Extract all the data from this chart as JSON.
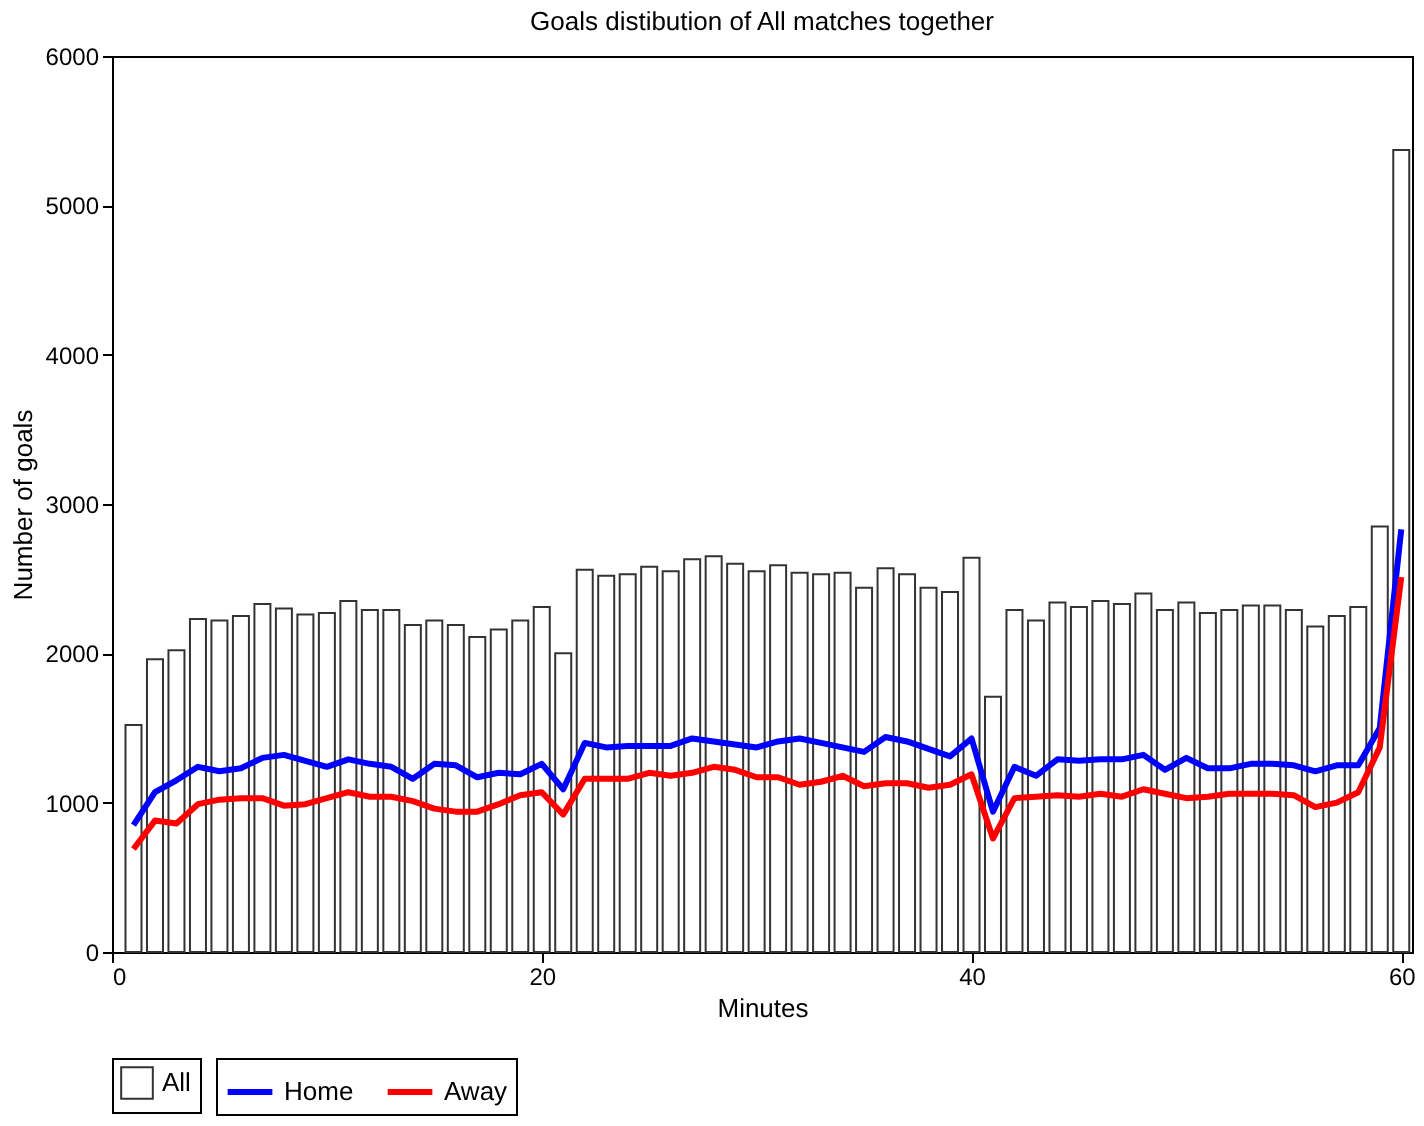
{
  "chart_data": {
    "type": "bar",
    "title": "Goals distibution of All matches together",
    "xlabel": "Minutes",
    "ylabel": "Number of goals",
    "x": [
      1,
      2,
      3,
      4,
      5,
      6,
      7,
      8,
      9,
      10,
      11,
      12,
      13,
      14,
      15,
      16,
      17,
      18,
      19,
      20,
      21,
      22,
      23,
      24,
      25,
      26,
      27,
      28,
      29,
      30,
      31,
      32,
      33,
      34,
      35,
      36,
      37,
      38,
      39,
      40,
      41,
      42,
      43,
      44,
      45,
      46,
      47,
      48,
      49,
      50,
      51,
      52,
      53,
      54,
      55,
      56,
      57,
      58,
      59,
      60
    ],
    "series": [
      {
        "name": "All",
        "color": "#ffffff",
        "values": [
          1520,
          1960,
          2020,
          2230,
          2220,
          2250,
          2330,
          2300,
          2260,
          2270,
          2350,
          2290,
          2290,
          2190,
          2220,
          2190,
          2110,
          2160,
          2220,
          2310,
          2000,
          2560,
          2520,
          2530,
          2580,
          2550,
          2630,
          2650,
          2600,
          2550,
          2590,
          2540,
          2530,
          2540,
          2440,
          2570,
          2530,
          2440,
          2410,
          2640,
          1710,
          2290,
          2220,
          2340,
          2310,
          2350,
          2330,
          2400,
          2290,
          2340,
          2270,
          2290,
          2320,
          2320,
          2290,
          2180,
          2250,
          2310,
          2850,
          5370
        ]
      },
      {
        "name": "Home",
        "type": "line",
        "color": "#0000ff",
        "values": [
          850,
          1070,
          1150,
          1240,
          1210,
          1230,
          1300,
          1320,
          1280,
          1240,
          1290,
          1260,
          1240,
          1160,
          1260,
          1250,
          1170,
          1200,
          1190,
          1260,
          1090,
          1400,
          1370,
          1380,
          1380,
          1380,
          1430,
          1410,
          1390,
          1370,
          1410,
          1430,
          1400,
          1370,
          1340,
          1440,
          1410,
          1360,
          1310,
          1430,
          940,
          1240,
          1180,
          1290,
          1280,
          1290,
          1290,
          1320,
          1220,
          1300,
          1230,
          1230,
          1260,
          1260,
          1250,
          1210,
          1250,
          1250,
          1500,
          2830
        ]
      },
      {
        "name": "Away",
        "type": "line",
        "color": "#ff0000",
        "values": [
          690,
          880,
          860,
          990,
          1020,
          1030,
          1030,
          980,
          990,
          1030,
          1070,
          1040,
          1040,
          1010,
          960,
          940,
          940,
          990,
          1050,
          1070,
          920,
          1160,
          1160,
          1160,
          1200,
          1180,
          1200,
          1240,
          1220,
          1170,
          1170,
          1120,
          1140,
          1180,
          1110,
          1130,
          1130,
          1100,
          1120,
          1190,
          760,
          1030,
          1040,
          1050,
          1040,
          1060,
          1040,
          1090,
          1060,
          1030,
          1040,
          1060,
          1060,
          1060,
          1050,
          970,
          1000,
          1070,
          1370,
          2510
        ]
      }
    ],
    "xlim": [
      0,
      60.5
    ],
    "xticks": [
      0,
      20,
      40,
      60
    ],
    "ylim": [
      0,
      6000
    ],
    "yticks": [
      0,
      1000,
      2000,
      3000,
      4000,
      5000,
      6000
    ],
    "grid": false,
    "legend": "bottom"
  }
}
